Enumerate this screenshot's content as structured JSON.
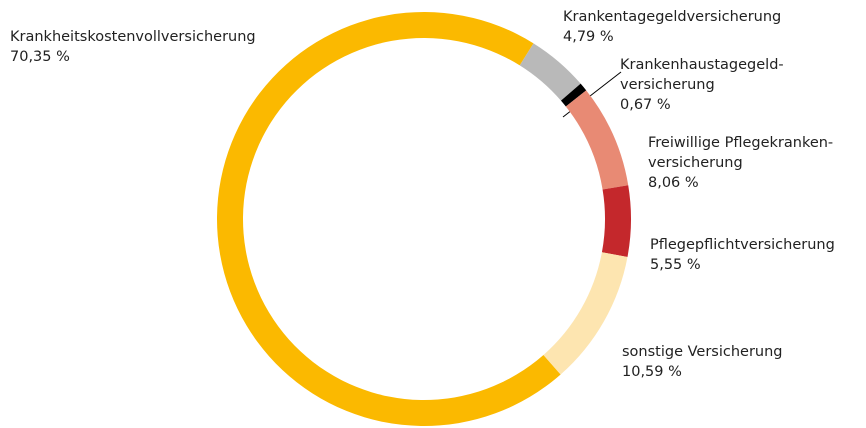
{
  "chart_data": {
    "type": "donut",
    "categories": [
      "Krankheitskostenvollversicherung",
      "Krankentagegeldversicherung",
      "Krankenhaustagegeld-\nversicherung",
      "Freiwillige Pflegekranken-\nversicherung",
      "Pflegepflichtversicherung",
      "sonstige Versicherung"
    ],
    "values": [
      70.35,
      4.79,
      0.67,
      8.06,
      5.55,
      10.59
    ],
    "value_labels": [
      "70,35 %",
      "4,79 %",
      "0,67 %",
      "8,06 %",
      "5,55 %",
      "10,59 %"
    ],
    "colors": [
      "#fbb900",
      "#b9b9b9",
      "#000000",
      "#e88a74",
      "#c4282c",
      "#fde5b0"
    ]
  }
}
